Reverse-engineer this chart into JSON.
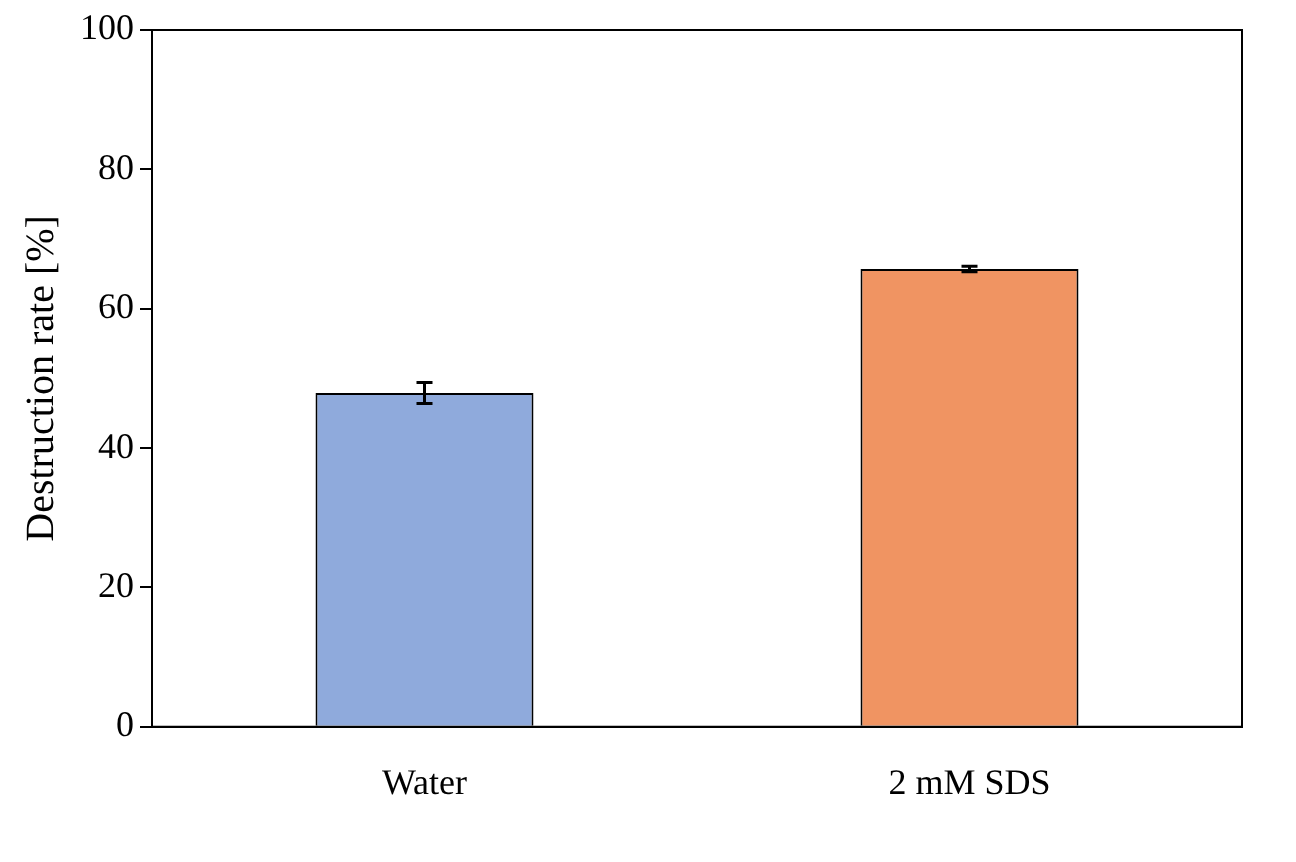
{
  "chart_data": {
    "type": "bar",
    "ylabel": "Destruction rate [%]",
    "categories": [
      "Water",
      "2 mM SDS"
    ],
    "values": [
      47.9,
      65.7
    ],
    "colors": [
      "#8faadc",
      "#f09462"
    ],
    "errors": [
      1.5,
      0.4
    ],
    "ylim": [
      0,
      100
    ],
    "yticks": [
      0,
      20,
      40,
      60,
      80,
      100
    ],
    "grid": false,
    "legend": false
  }
}
